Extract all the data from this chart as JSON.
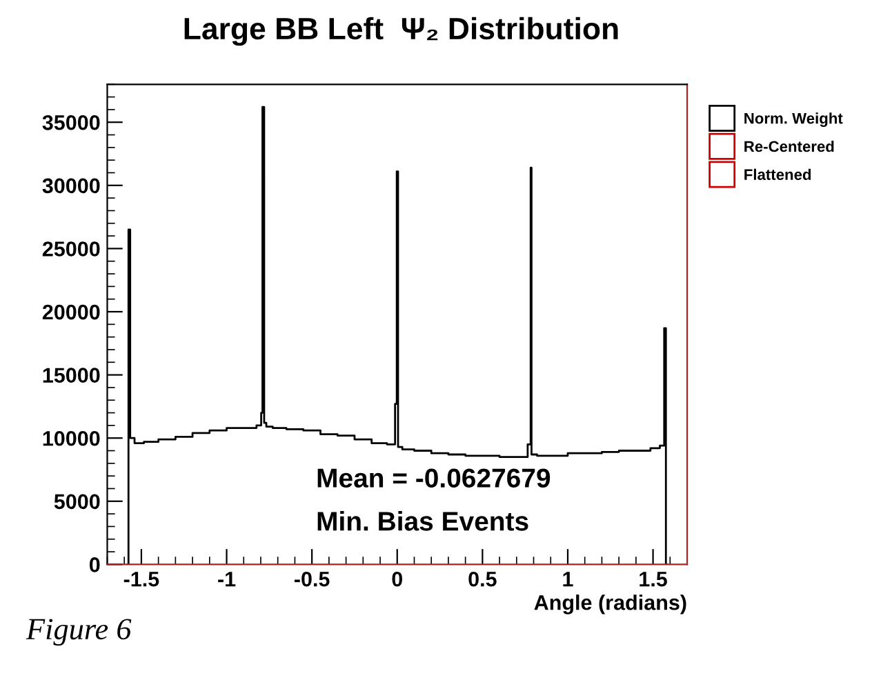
{
  "chart_data": {
    "type": "step",
    "title": "Large BB Left  Ψ₂ Distribution",
    "xlabel": "Angle (radians)",
    "x": [
      -1.58,
      -1.571,
      -1.56,
      -1.52,
      -1.45,
      -1.35,
      -1.25,
      -1.15,
      -1.05,
      -0.95,
      -0.85,
      -0.8,
      -0.795,
      -0.785,
      -0.775,
      -0.76,
      -0.7,
      -0.6,
      -0.5,
      -0.4,
      -0.3,
      -0.2,
      -0.1,
      -0.02,
      -0.005,
      0.0,
      0.01,
      0.05,
      0.15,
      0.25,
      0.35,
      0.45,
      0.55,
      0.65,
      0.75,
      0.78,
      0.785,
      0.79,
      0.85,
      0.95,
      1.05,
      1.15,
      1.25,
      1.35,
      1.45,
      1.52,
      1.56,
      1.571,
      1.58
    ],
    "series": [
      {
        "name": "Norm. Weight",
        "color": "#000000",
        "values": [
          0,
          26500,
          10000,
          9600,
          9700,
          9900,
          10100,
          10400,
          10600,
          10800,
          10800,
          11000,
          12000,
          36200,
          11200,
          10900,
          10800,
          10700,
          10600,
          10300,
          10200,
          9900,
          9600,
          9500,
          12700,
          31100,
          9300,
          9100,
          9000,
          8800,
          8700,
          8600,
          8600,
          8500,
          8500,
          9500,
          31400,
          8700,
          8600,
          8600,
          8800,
          8800,
          8900,
          9000,
          9000,
          9200,
          9400,
          18700,
          0
        ]
      },
      {
        "name": "Re-Centered",
        "color": "#cc0000",
        "values": [
          null,
          null,
          null,
          null,
          null,
          null,
          null,
          null,
          null,
          null,
          null,
          null,
          null,
          null,
          null,
          null,
          null,
          null,
          null,
          null,
          null,
          null,
          null,
          null,
          null,
          null,
          null,
          null,
          null,
          null,
          null,
          null,
          null,
          null,
          null,
          null,
          null,
          null,
          null,
          null,
          null,
          null,
          null,
          null,
          null,
          null,
          null,
          null,
          null
        ]
      },
      {
        "name": "Flattened",
        "color": "#cc0000",
        "values": [
          null,
          null,
          null,
          null,
          null,
          null,
          null,
          null,
          null,
          null,
          null,
          null,
          null,
          null,
          null,
          null,
          null,
          null,
          null,
          null,
          null,
          null,
          null,
          null,
          null,
          null,
          null,
          null,
          null,
          null,
          null,
          null,
          null,
          null,
          null,
          null,
          null,
          null,
          null,
          null,
          null,
          null,
          null,
          null,
          null,
          null,
          null,
          null,
          null
        ]
      }
    ],
    "xlim": [
      -1.7,
      1.7
    ],
    "xticks": [
      -1.5,
      -1,
      -0.5,
      0,
      0.5,
      1,
      1.5
    ],
    "ylim": [
      0,
      38000
    ],
    "yticks": [
      0,
      5000,
      10000,
      15000,
      20000,
      25000,
      30000,
      35000
    ],
    "grid": false,
    "legend": "right",
    "annotations": [
      "Mean = -0.0627679",
      "Min. Bias Events",
      "Figure 6"
    ]
  }
}
